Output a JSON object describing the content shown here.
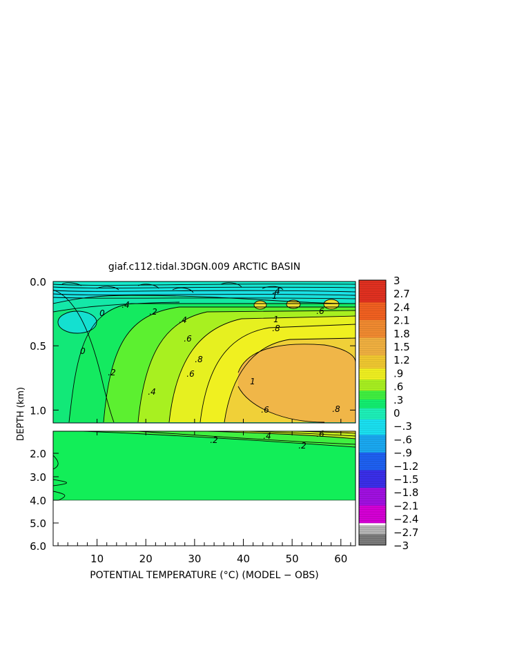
{
  "chart_data": {
    "type": "heatmap",
    "title": "giaf.c112.tidal.3DGN.009 ARCTIC BASIN",
    "xlabel": "POTENTIAL TEMPERATURE (°C) (MODEL − OBS)",
    "ylabel": "DEPTH (km)",
    "xlim": [
      1,
      63
    ],
    "x_ticks": [
      "10",
      "20",
      "30",
      "40",
      "50",
      "60"
    ],
    "upper_panel": {
      "ylim": [
        0.0,
        1.1
      ],
      "y_ticks": [
        "0.0",
        "0.5",
        "1.0"
      ],
      "contour_labels": [
        ".4",
        "0",
        "0",
        ".2",
        ".4",
        ".6",
        ".8",
        "1",
        ".2",
        ".4",
        ".6",
        ".8",
        "1",
        ".6",
        ".6",
        ".8",
        "1",
        ".4"
      ]
    },
    "lower_panel": {
      "ylim": [
        1.1,
        6.0
      ],
      "y_ticks": [
        "2.0",
        "3.0",
        "4.0",
        "5.0",
        "6.0"
      ],
      "data_bottom_depth_km": 4.0,
      "contour_labels": [
        ".2",
        ".2",
        ".4",
        ".6"
      ]
    },
    "colorbar": {
      "min": -3,
      "max": 3,
      "step": 0.3,
      "labels": [
        "3",
        "2.7",
        "2.4",
        "2.1",
        "1.8",
        "1.5",
        "1.2",
        ".9",
        ".6",
        ".3",
        "0",
        "−.3",
        "−.6",
        "−.9",
        "−1.2",
        "−1.5",
        "−1.8",
        "−2.1",
        "−2.4",
        "−2.7",
        "−3"
      ],
      "stops": [
        {
          "v": -3.0,
          "c": "#7a7a7a"
        },
        {
          "v": -2.75,
          "c": "#b5b5b5"
        },
        {
          "v": -2.55,
          "c": "#ffffff"
        },
        {
          "v": -2.5,
          "c": "#d400d4"
        },
        {
          "v": -2.1,
          "c": "#a010e0"
        },
        {
          "v": -1.7,
          "c": "#3a2ee8"
        },
        {
          "v": -1.3,
          "c": "#1e60f0"
        },
        {
          "v": -0.9,
          "c": "#1aa8f0"
        },
        {
          "v": -0.5,
          "c": "#1ae0f0"
        },
        {
          "v": -0.15,
          "c": "#1df0b8"
        },
        {
          "v": 0.1,
          "c": "#12ee70"
        },
        {
          "v": 0.3,
          "c": "#40f040"
        },
        {
          "v": 0.5,
          "c": "#a8f020"
        },
        {
          "v": 0.75,
          "c": "#f0f020"
        },
        {
          "v": 1.0,
          "c": "#f0c830"
        },
        {
          "v": 1.3,
          "c": "#f0b040"
        },
        {
          "v": 1.7,
          "c": "#f08a30"
        },
        {
          "v": 2.1,
          "c": "#f06020"
        },
        {
          "v": 2.5,
          "c": "#e03020"
        },
        {
          "v": 3.0,
          "c": "#b01010"
        }
      ]
    }
  }
}
